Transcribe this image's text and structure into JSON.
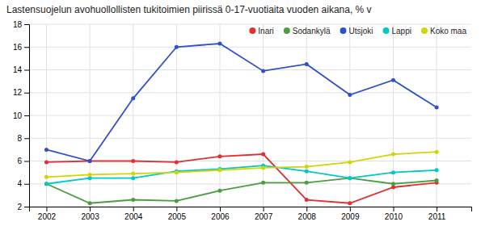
{
  "chart_data": {
    "type": "line",
    "title": "Lastensuojelun avohuollollisten tukitoimien piirissä 0-17-vuotiaita vuoden aikana, % v",
    "x": [
      2002,
      2003,
      2004,
      2005,
      2006,
      2007,
      2008,
      2009,
      2010,
      2011
    ],
    "series": [
      {
        "name": "Inari",
        "color": "#e03030",
        "values": [
          5.9,
          6.0,
          6.0,
          5.9,
          6.4,
          6.6,
          2.6,
          2.3,
          3.7,
          4.1
        ]
      },
      {
        "name": "Sodankylä",
        "color": "#4a9e3f",
        "values": [
          4.0,
          2.3,
          2.6,
          2.5,
          3.4,
          4.1,
          4.1,
          4.5,
          4.0,
          4.3
        ]
      },
      {
        "name": "Utsjoki",
        "color": "#3050c8",
        "values": [
          7.0,
          6.0,
          11.5,
          16.0,
          16.3,
          13.9,
          14.5,
          11.8,
          13.1,
          10.7
        ]
      },
      {
        "name": "Lappi",
        "color": "#00c8c8",
        "values": [
          4.0,
          4.5,
          4.5,
          5.1,
          5.3,
          5.6,
          5.1,
          4.5,
          5.0,
          5.2
        ]
      },
      {
        "name": "Koko maa",
        "color": "#d4d400",
        "values": [
          4.6,
          4.8,
          4.9,
          5.0,
          5.2,
          5.4,
          5.5,
          5.9,
          6.6,
          6.8
        ]
      }
    ],
    "xlim": [
      2001.6,
      2011.8
    ],
    "xticks": [
      2002,
      2003,
      2004,
      2005,
      2006,
      2007,
      2008,
      2009,
      2010,
      2011
    ],
    "ylim": [
      2,
      18
    ],
    "yticks": [
      2,
      4,
      6,
      8,
      10,
      12,
      14,
      16,
      18
    ],
    "grid": true,
    "legend": "upper right",
    "marker": "circle"
  }
}
